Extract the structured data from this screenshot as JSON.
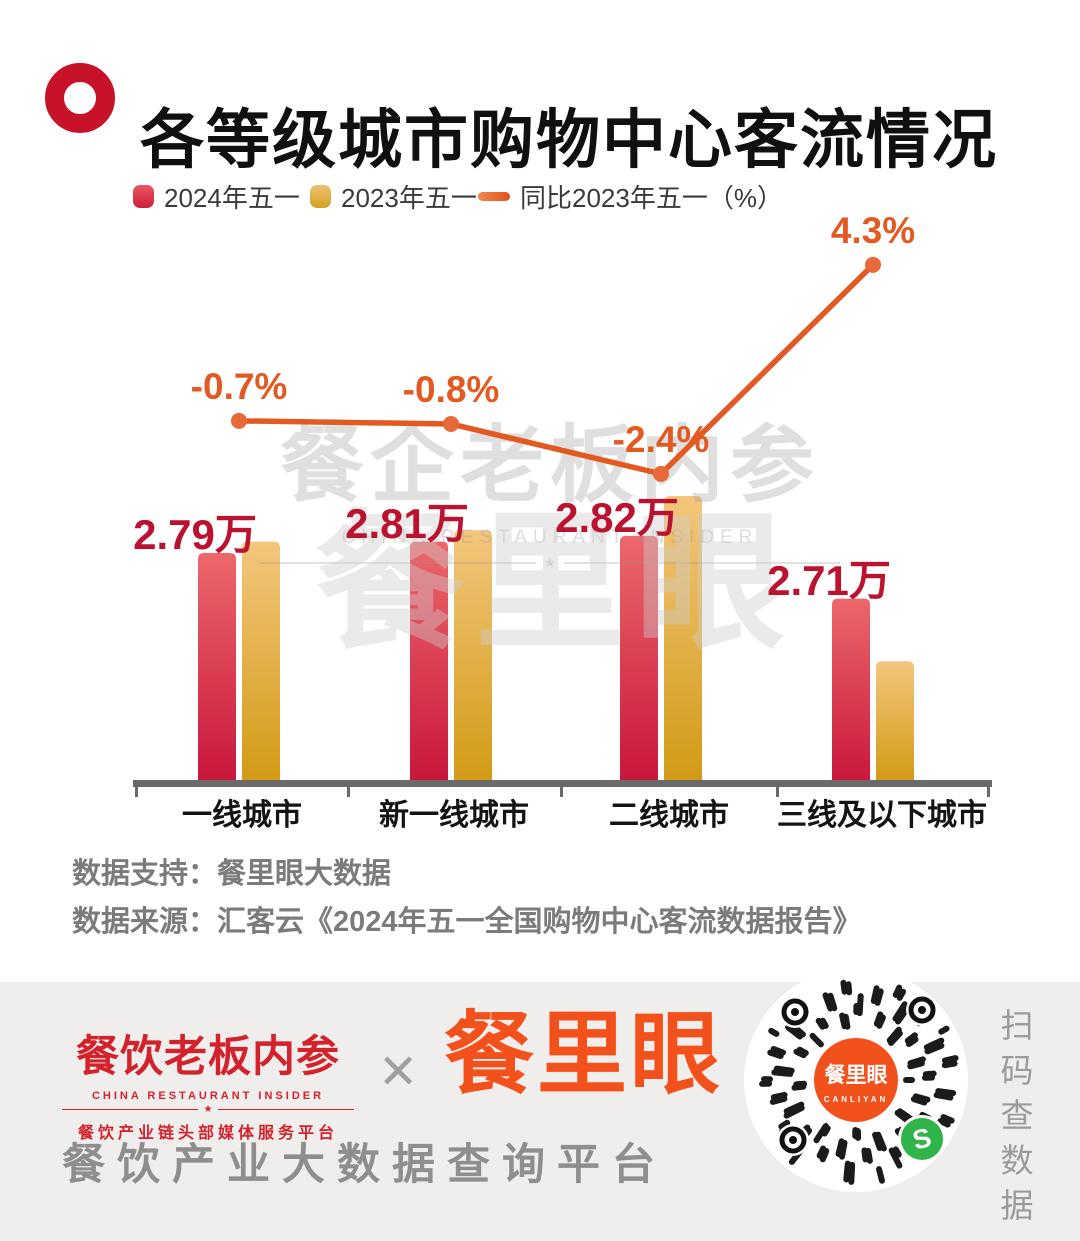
{
  "header": {
    "title": "各等级城市购物中心客流情况"
  },
  "legend": [
    {
      "label": "2024年五一",
      "mark": "red-square",
      "color": "#d7263d"
    },
    {
      "label": "2023年五一",
      "mark": "gold-square",
      "color": "#d9a21b"
    },
    {
      "label": "同比2023年五一（%）",
      "mark": "orange-line",
      "color": "#e25a22"
    }
  ],
  "chart_data": {
    "type": "bar+line",
    "categories": [
      "一线城市",
      "新一线城市",
      "二线城市",
      "三线及以下城市"
    ],
    "series": [
      {
        "name": "2024年五一",
        "type": "bar",
        "unit": "万",
        "values": [
          2.79,
          2.81,
          2.82,
          2.71
        ],
        "labels": [
          "2.79万",
          "2.81万",
          "2.82万",
          "2.71万"
        ]
      },
      {
        "name": "2023年五一",
        "type": "bar",
        "unit": "万",
        "values": [
          2.81,
          2.83,
          2.89,
          2.6
        ],
        "note": "bars shown without numeric labels; heights estimated from chart"
      },
      {
        "name": "同比2023年五一（%）",
        "type": "line",
        "unit": "%",
        "values": [
          -0.7,
          -0.8,
          -2.4,
          4.3
        ],
        "labels": [
          "-0.7%",
          "-0.8%",
          "-2.4%",
          "4.3%"
        ]
      }
    ],
    "legend_position": "top",
    "grid": false,
    "baseline_axis": true
  },
  "watermarks": {
    "center_main": "餐企老板内参",
    "center_en": "CHINA RESTAURANT INSIDER",
    "center_big": "餐里眼"
  },
  "sources": {
    "support": "数据支持：餐里眼大数据",
    "origin": "数据来源：汇客云《2024年五一全国购物中心客流数据报告》"
  },
  "footer": {
    "brand1_name": "餐饮老板内参",
    "brand1_en": "CHINA RESTAURANT INSIDER",
    "brand1_star": "★",
    "brand1_cn": "餐饮产业链头部媒体服务平台",
    "separator": "✕",
    "brand2_name": "餐里眼",
    "tagline": "餐饮产业大数据查询平台",
    "qr_center_text": "餐里眼",
    "qr_center_sub": "CANLIYAN",
    "qr_side_text": "扫码查数据"
  },
  "colors": {
    "title_icon_red": "#c8122a",
    "bar_2024_top": "#ec686b",
    "bar_2024_bottom": "#c9163c",
    "bar_2023_top": "#f3c67d",
    "bar_2023_bottom": "#d29a14",
    "line_orange": "#e25a22",
    "value_label_red": "#bb1230",
    "axis_gray": "#6a6a6a",
    "source_gray": "#7b7b7b",
    "footer_bg": "#efeeec",
    "brand_red": "#d2232c",
    "brand_orange": "#f3511c",
    "qr_green": "#2fb44a"
  }
}
